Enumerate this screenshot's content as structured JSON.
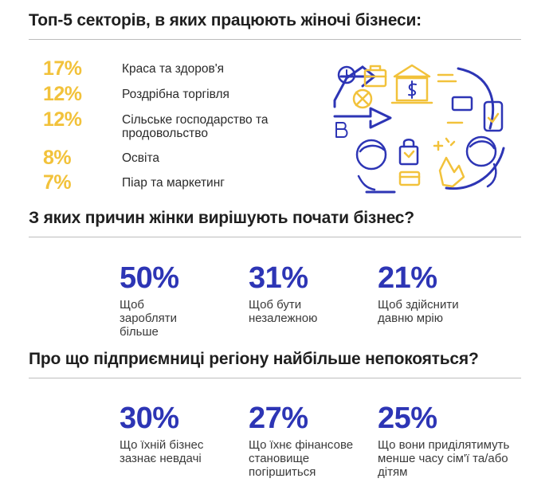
{
  "sectors": {
    "title": "Топ-5 секторів, в яких працюють жіночі бізнеси:",
    "items": [
      {
        "pct": "17%",
        "label": "Краса та здоров'я"
      },
      {
        "pct": "12%",
        "label": "Роздрібна торгівля"
      },
      {
        "pct": "12%",
        "label": "Сільське господарство та продовольство"
      },
      {
        "pct": "8%",
        "label": "Освіта"
      },
      {
        "pct": "7%",
        "label": "Піар та маркетинг"
      }
    ]
  },
  "reasons": {
    "title": "З яких причин жінки вирішують почати бізнес?",
    "items": [
      {
        "pct": "50%",
        "label": "Щоб заробляти більше"
      },
      {
        "pct": "31%",
        "label": "Щоб бути незалежною"
      },
      {
        "pct": "21%",
        "label": "Щоб здійснити давню мрію"
      }
    ]
  },
  "concerns": {
    "title": "Про що підприємниці регіону найбільше непокояться?",
    "items": [
      {
        "pct": "30%",
        "label": "Що їхній бізнес зазнає невдачі"
      },
      {
        "pct": "27%",
        "label": "Що їхнє фінансове становище погіршиться"
      },
      {
        "pct": "25%",
        "label": "Що вони приділятимуть менше часу сім'ї та/або дітям"
      }
    ]
  },
  "colors": {
    "accent_yellow": "#f2c23b",
    "accent_blue": "#2d35b5"
  },
  "illustration_icons": [
    "clock-icon",
    "briefcase-icon",
    "bank-icon",
    "dollar-icon",
    "bitcoin-icon",
    "ball-icon",
    "phone-icon",
    "person-icon",
    "shopping-bag-icon",
    "hand-icon",
    "card-icon"
  ]
}
